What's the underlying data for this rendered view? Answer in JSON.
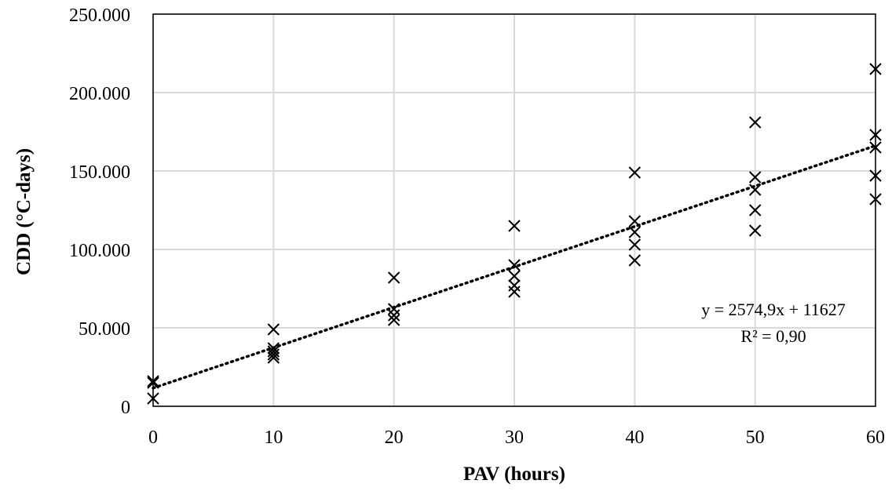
{
  "chart_data": {
    "type": "scatter",
    "xlabel": "PAV (hours)",
    "ylabel": "CDD (°C-days)",
    "xlim": [
      0,
      60
    ],
    "ylim": [
      0,
      250000
    ],
    "x_ticks": [
      0,
      10,
      20,
      30,
      40,
      50,
      60
    ],
    "x_tick_labels": [
      "0",
      "10",
      "20",
      "30",
      "40",
      "50",
      "60"
    ],
    "y_ticks": [
      0,
      50000,
      100000,
      150000,
      200000,
      250000
    ],
    "y_tick_labels": [
      "0",
      "50.000",
      "100.000",
      "150.000",
      "200.000",
      "250.000"
    ],
    "grid": true,
    "series": [
      {
        "marker": "x",
        "color": "#000000",
        "points": [
          {
            "x": 0,
            "y": 16000
          },
          {
            "x": 0,
            "y": 15000
          },
          {
            "x": 0,
            "y": 5000
          },
          {
            "x": 10,
            "y": 49000
          },
          {
            "x": 10,
            "y": 37000
          },
          {
            "x": 10,
            "y": 35000
          },
          {
            "x": 10,
            "y": 33000
          },
          {
            "x": 10,
            "y": 31000
          },
          {
            "x": 20,
            "y": 82000
          },
          {
            "x": 20,
            "y": 62000
          },
          {
            "x": 20,
            "y": 58000
          },
          {
            "x": 20,
            "y": 55000
          },
          {
            "x": 30,
            "y": 115000
          },
          {
            "x": 30,
            "y": 90000
          },
          {
            "x": 30,
            "y": 83000
          },
          {
            "x": 30,
            "y": 77000
          },
          {
            "x": 30,
            "y": 73000
          },
          {
            "x": 40,
            "y": 149000
          },
          {
            "x": 40,
            "y": 118000
          },
          {
            "x": 40,
            "y": 111000
          },
          {
            "x": 40,
            "y": 103000
          },
          {
            "x": 40,
            "y": 93000
          },
          {
            "x": 50,
            "y": 181000
          },
          {
            "x": 50,
            "y": 146000
          },
          {
            "x": 50,
            "y": 138000
          },
          {
            "x": 50,
            "y": 125000
          },
          {
            "x": 50,
            "y": 112000
          },
          {
            "x": 60,
            "y": 215000
          },
          {
            "x": 60,
            "y": 173000
          },
          {
            "x": 60,
            "y": 165000
          },
          {
            "x": 60,
            "y": 147000
          },
          {
            "x": 60,
            "y": 132000
          }
        ]
      }
    ],
    "trendline": {
      "type": "linear",
      "style": "dotted",
      "slope": 2574.9,
      "intercept": 11627,
      "equation_text": "y = 2574,9x + 11627",
      "r2_text": "R² = 0,90"
    }
  }
}
